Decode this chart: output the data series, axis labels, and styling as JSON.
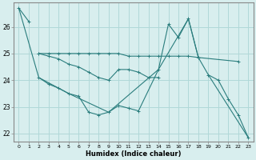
{
  "xlabel": "Humidex (Indice chaleur)",
  "bg_color": "#d8eeee",
  "grid_color": "#b0d8d8",
  "line_color": "#2a7d7d",
  "xlim": [
    -0.5,
    23.5
  ],
  "ylim": [
    21.7,
    26.9
  ],
  "yticks": [
    22,
    23,
    24,
    25,
    26
  ],
  "xticks": [
    0,
    1,
    2,
    3,
    4,
    5,
    6,
    7,
    8,
    9,
    10,
    11,
    12,
    13,
    14,
    15,
    16,
    17,
    18,
    19,
    20,
    21,
    22,
    23
  ],
  "series": [
    {
      "points": [
        [
          0,
          26.7
        ],
        [
          1,
          26.2
        ]
      ]
    },
    {
      "points": [
        [
          2,
          25.0
        ],
        [
          3,
          25.0
        ],
        [
          4,
          25.0
        ],
        [
          5,
          25.0
        ],
        [
          6,
          25.0
        ],
        [
          7,
          25.0
        ],
        [
          8,
          25.0
        ],
        [
          9,
          25.0
        ],
        [
          10,
          25.0
        ],
        [
          11,
          24.9
        ],
        [
          12,
          24.9
        ],
        [
          13,
          24.9
        ],
        [
          14,
          24.9
        ],
        [
          15,
          24.9
        ],
        [
          16,
          24.9
        ],
        [
          17,
          24.9
        ],
        [
          18,
          24.85
        ],
        [
          22,
          24.7
        ]
      ]
    },
    {
      "points": [
        [
          2,
          25.0
        ],
        [
          3,
          24.9
        ],
        [
          4,
          24.8
        ],
        [
          5,
          24.6
        ],
        [
          6,
          24.5
        ],
        [
          7,
          24.3
        ],
        [
          8,
          24.1
        ],
        [
          9,
          24.0
        ],
        [
          10,
          24.4
        ],
        [
          11,
          24.4
        ],
        [
          12,
          24.3
        ],
        [
          13,
          24.1
        ],
        [
          14,
          24.1
        ]
      ]
    },
    {
      "points": [
        [
          2,
          24.1
        ],
        [
          3,
          23.85
        ],
        [
          4,
          23.7
        ],
        [
          5,
          23.5
        ],
        [
          6,
          23.4
        ],
        [
          7,
          22.8
        ],
        [
          8,
          22.7
        ],
        [
          9,
          22.8
        ],
        [
          10,
          23.05
        ],
        [
          11,
          22.95
        ],
        [
          12,
          22.85
        ],
        [
          14,
          24.4
        ],
        [
          15,
          26.1
        ],
        [
          16,
          25.6
        ],
        [
          17,
          26.3
        ],
        [
          18,
          24.85
        ]
      ]
    },
    {
      "points": [
        [
          19,
          24.2
        ],
        [
          20,
          24.0
        ],
        [
          21,
          23.3
        ],
        [
          22,
          22.7
        ],
        [
          23,
          21.85
        ]
      ]
    },
    {
      "points": [
        [
          0,
          26.7
        ],
        [
          2,
          24.1
        ],
        [
          5,
          23.5
        ],
        [
          9,
          22.8
        ],
        [
          14,
          24.4
        ],
        [
          17,
          26.3
        ],
        [
          18,
          24.85
        ],
        [
          19,
          24.2
        ],
        [
          23,
          21.85
        ]
      ]
    }
  ]
}
